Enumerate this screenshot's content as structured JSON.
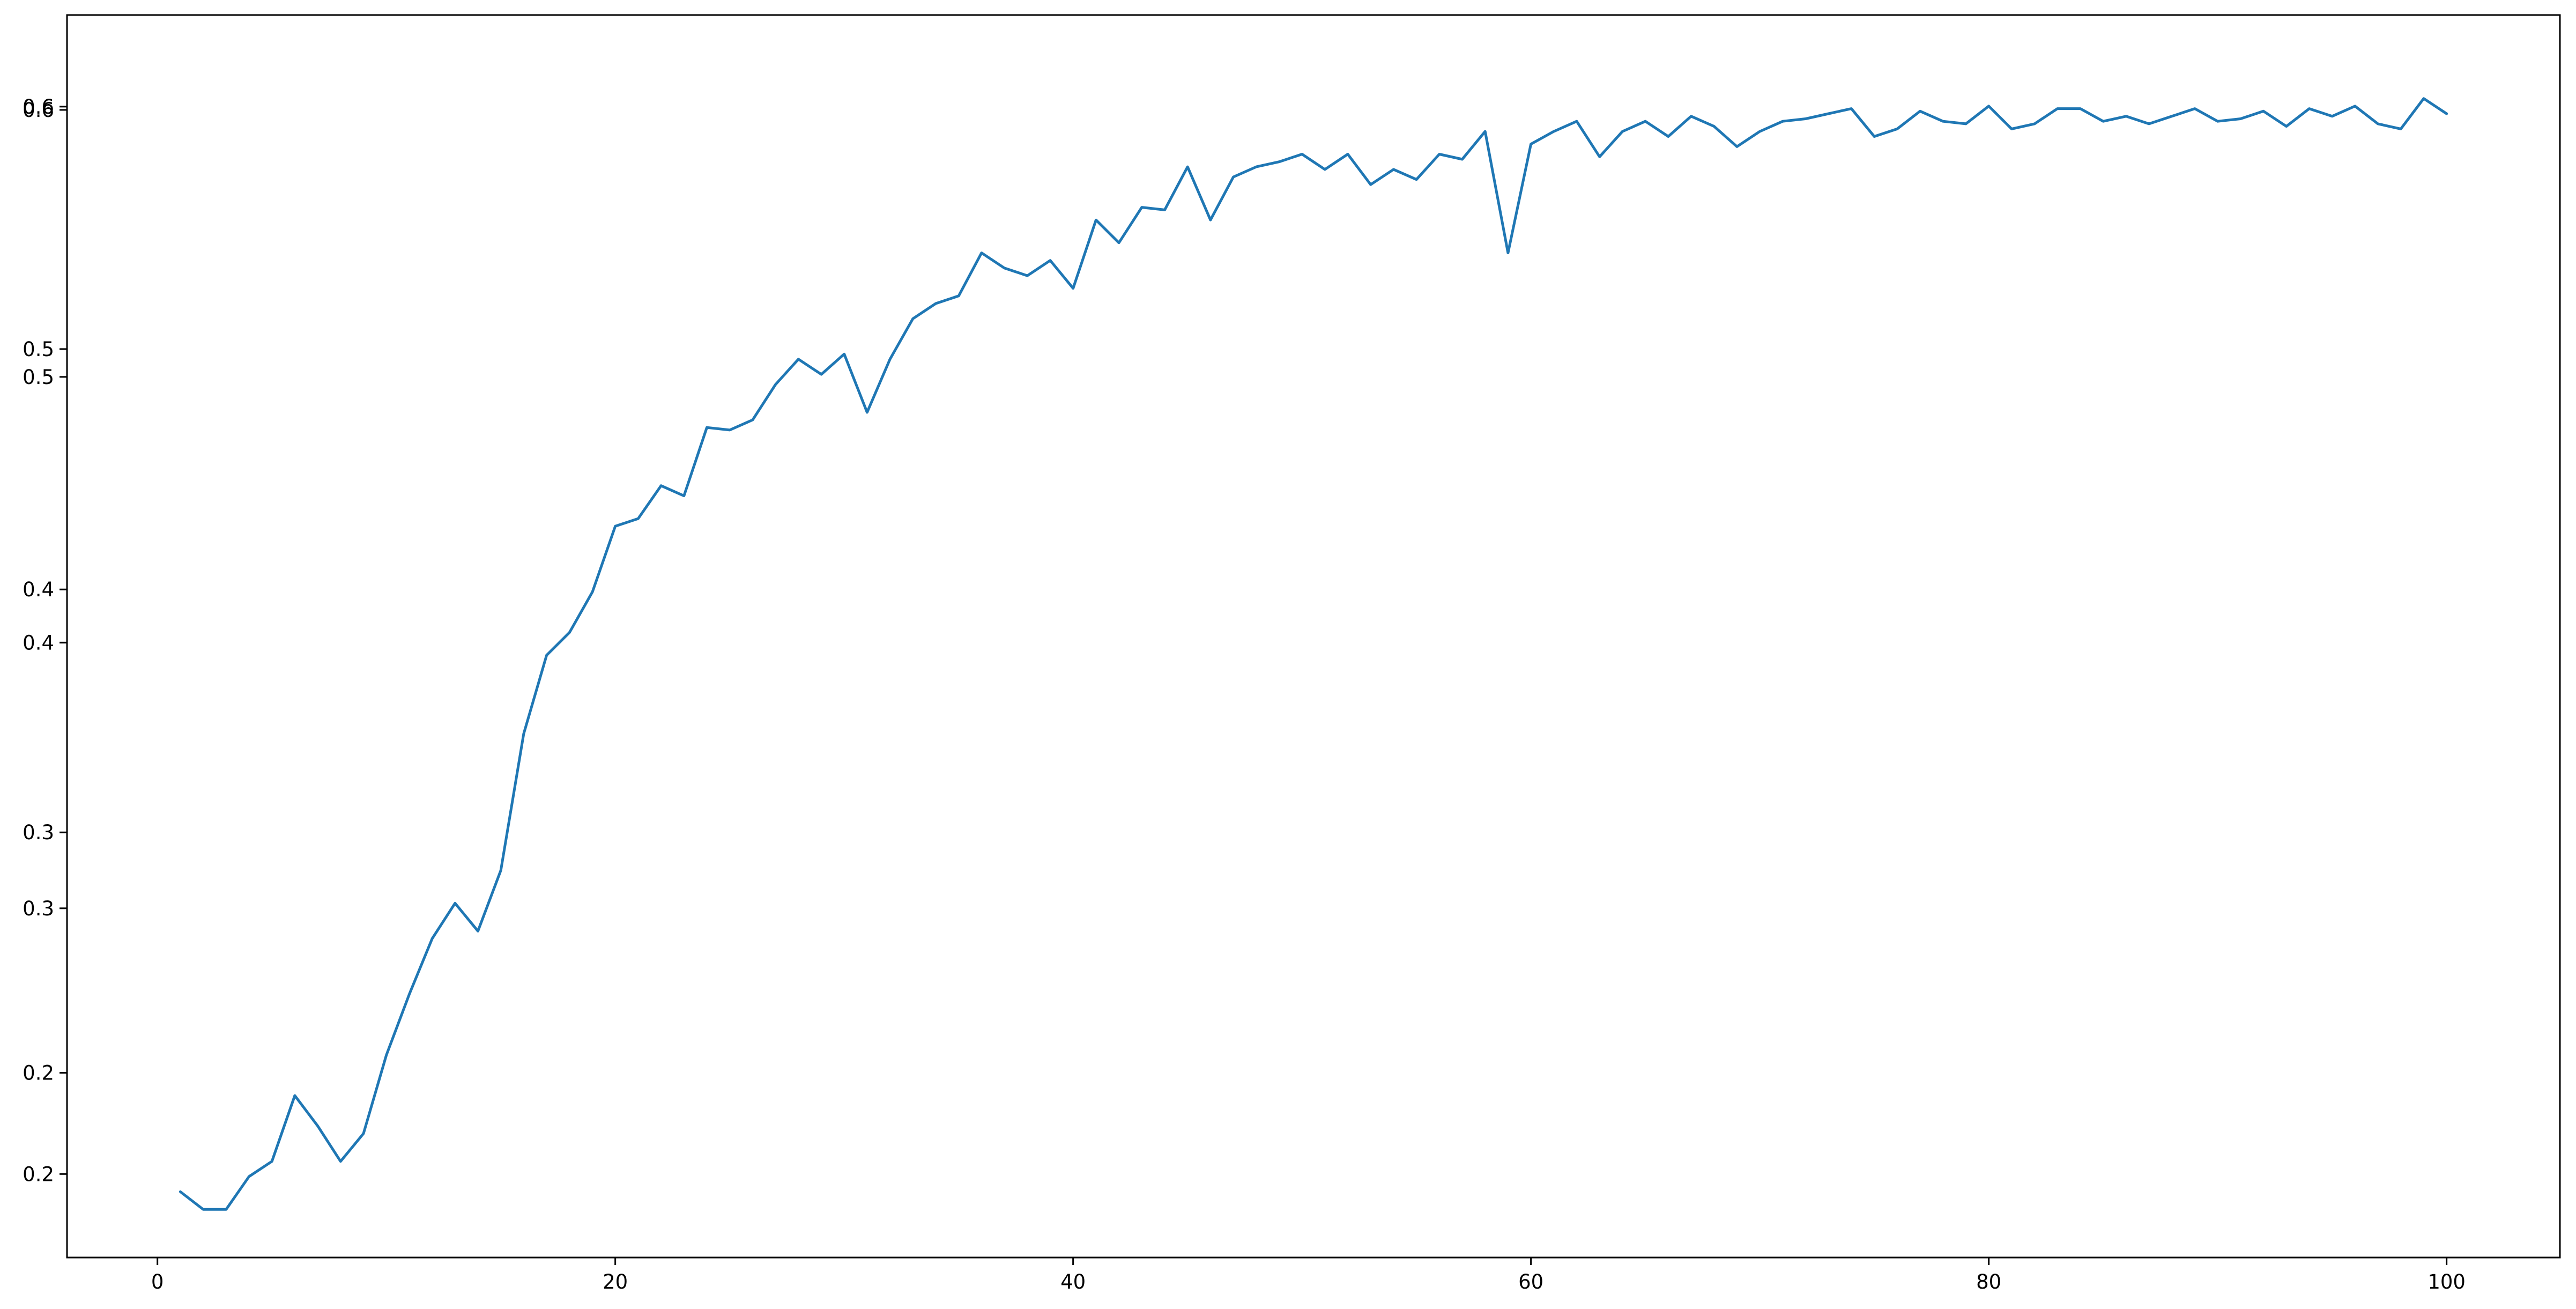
{
  "chart_data": {
    "type": "line",
    "title": "",
    "xlabel": "",
    "ylabel": "",
    "xlim": [
      -3.95,
      104.95
    ],
    "ylim": [
      0.152,
      0.643
    ],
    "grid": false,
    "legend": "none",
    "line_color": "#1f77b4",
    "x_ticks": [
      {
        "value": 0,
        "label": "0"
      },
      {
        "value": 20,
        "label": "20"
      },
      {
        "value": 40,
        "label": "40"
      },
      {
        "value": 60,
        "label": "60"
      },
      {
        "value": 80,
        "label": "80"
      },
      {
        "value": 100,
        "label": "100"
      }
    ],
    "y_ticks": [
      {
        "value": 0.185,
        "label": "0.2"
      },
      {
        "value": 0.225,
        "label": "0.2"
      },
      {
        "value": 0.29,
        "label": "0.3"
      },
      {
        "value": 0.32,
        "label": "0.3"
      },
      {
        "value": 0.395,
        "label": "0.4"
      },
      {
        "value": 0.416,
        "label": "0.4"
      },
      {
        "value": 0.5,
        "label": "0.5"
      },
      {
        "value": 0.511,
        "label": "0.5"
      },
      {
        "value": 0.6055,
        "label": "0.6"
      },
      {
        "value": 0.6068,
        "label": "0.6"
      }
    ],
    "series": [
      {
        "x": [
          1,
          2,
          3,
          4,
          5,
          6,
          7,
          8,
          9,
          10,
          11,
          12,
          13,
          14,
          15,
          16,
          17,
          18,
          19,
          20,
          21,
          22,
          23,
          24,
          25,
          26,
          27,
          28,
          29,
          30,
          31,
          32,
          33,
          34,
          35,
          36,
          37,
          38,
          39,
          40,
          41,
          42,
          43,
          44,
          45,
          46,
          47,
          48,
          49,
          50,
          51,
          52,
          53,
          54,
          55,
          56,
          57,
          58,
          59,
          60,
          61,
          62,
          63,
          64,
          65,
          66,
          67,
          68,
          69,
          70,
          71,
          72,
          73,
          74,
          75,
          76,
          77,
          78,
          79,
          80,
          81,
          82,
          83,
          84,
          85,
          86,
          87,
          88,
          89,
          90,
          91,
          92,
          93,
          94,
          95,
          96,
          97,
          98,
          99,
          100
        ],
        "values": [
          0.178,
          0.171,
          0.171,
          0.184,
          0.19,
          0.216,
          0.204,
          0.19,
          0.201,
          0.232,
          0.256,
          0.278,
          0.292,
          0.281,
          0.305,
          0.359,
          0.39,
          0.399,
          0.415,
          0.441,
          0.444,
          0.457,
          0.453,
          0.48,
          0.479,
          0.483,
          0.497,
          0.507,
          0.501,
          0.509,
          0.486,
          0.507,
          0.523,
          0.529,
          0.532,
          0.549,
          0.543,
          0.54,
          0.546,
          0.535,
          0.562,
          0.553,
          0.567,
          0.566,
          0.583,
          0.562,
          0.579,
          0.583,
          0.585,
          0.588,
          0.582,
          0.588,
          0.576,
          0.582,
          0.578,
          0.588,
          0.586,
          0.597,
          0.549,
          0.592,
          0.597,
          0.601,
          0.587,
          0.597,
          0.601,
          0.595,
          0.603,
          0.599,
          0.591,
          0.597,
          0.601,
          0.602,
          0.604,
          0.606,
          0.595,
          0.598,
          0.605,
          0.601,
          0.6,
          0.607,
          0.598,
          0.6,
          0.606,
          0.606,
          0.601,
          0.603,
          0.6,
          0.603,
          0.606,
          0.601,
          0.602,
          0.605,
          0.599,
          0.606,
          0.603,
          0.607,
          0.6,
          0.598,
          0.61,
          0.604
        ]
      }
    ]
  }
}
